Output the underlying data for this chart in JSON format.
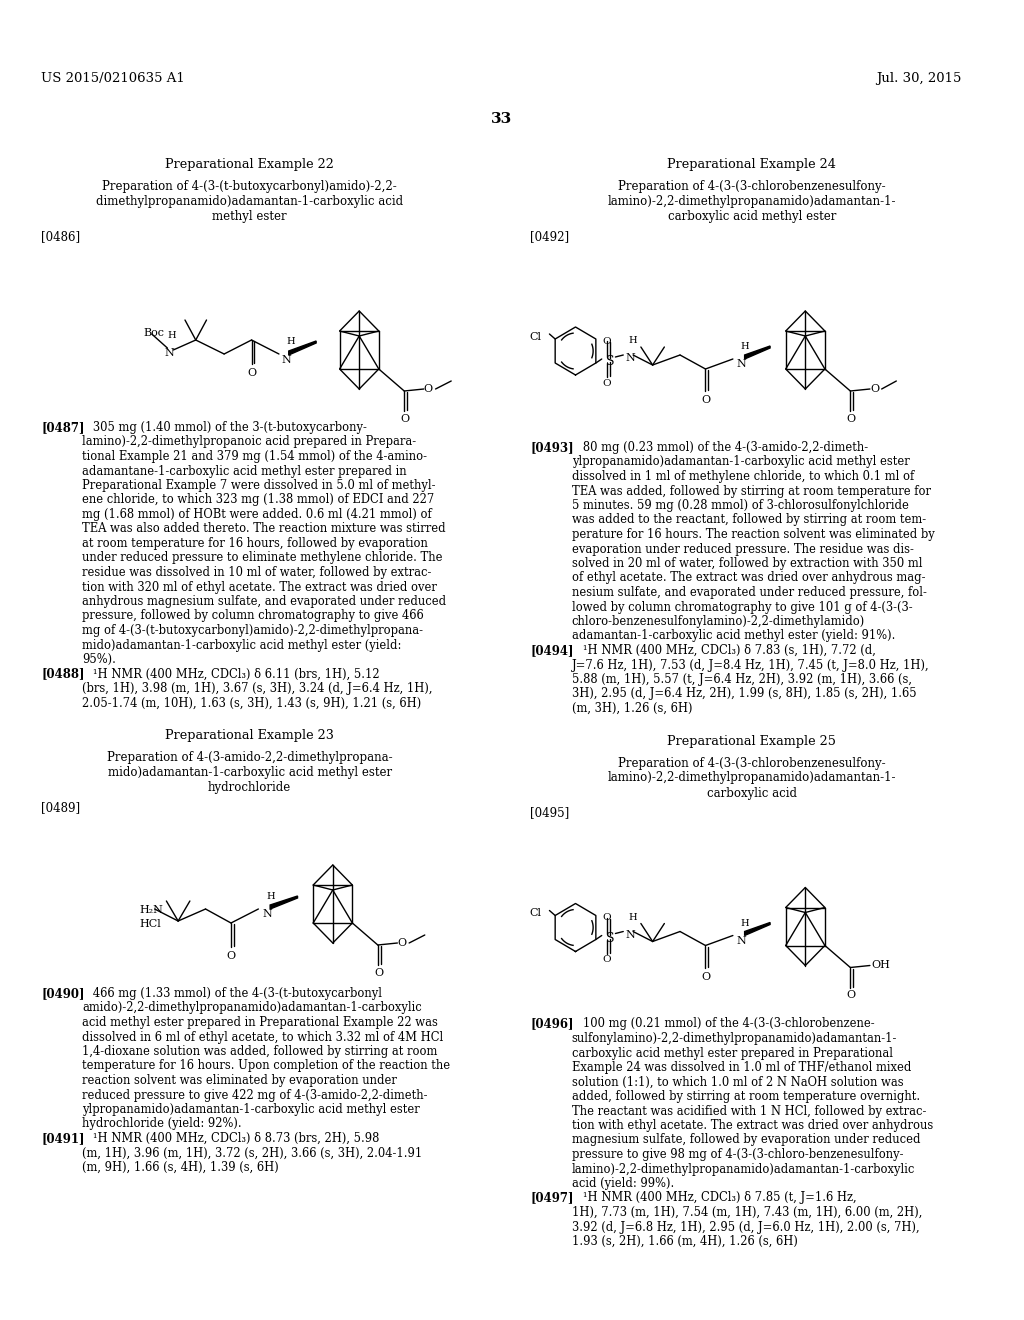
{
  "header_left": "US 2015/0210635 A1",
  "header_right": "Jul. 30, 2015",
  "page_number": "33",
  "bg_color": "#ffffff",
  "sections": {
    "ex22_title": "Preparational Example 22",
    "ex22_sub1": "Preparation of 4-(3-(t-butoxycarbonyl)amido)-2,2-",
    "ex22_sub2": "dimethylpropanamido)adamantan-1-carboxylic acid",
    "ex22_sub3": "methyl ester",
    "ex22_tag": "[0486]",
    "ex22_para_tag": "[0487]",
    "ex22_para": "   305 mg (1.40 mmol) of the 3-(t-butoxycarbony-\nlamino)-2,2-dimethylpropanoic acid prepared in Prepara-\ntional Example 21 and 379 mg (1.54 mmol) of the 4-amino-\nadamantane-1-carboxylic acid methyl ester prepared in\nPreparational Example 7 were dissolved in 5.0 ml of methyl-\nene chloride, to which 323 mg (1.38 mmol) of EDCI and 227\nmg (1.68 mmol) of HOBt were added. 0.6 ml (4.21 mmol) of\nTEA was also added thereto. The reaction mixture was stirred\nat room temperature for 16 hours, followed by evaporation\nunder reduced pressure to eliminate methylene chloride. The\nresidue was dissolved in 10 ml of water, followed by extrac-\ntion with 320 ml of ethyl acetate. The extract was dried over\nanhydrous magnesium sulfate, and evaporated under reduced\npressure, followed by column chromatography to give 466\nmg of 4-(3-(t-butoxycarbonyl)amido)-2,2-dimethylpropana-\nmido)adamantan-1-carboxylic acid methyl ester (yield:\n95%).",
    "ex22_nmr_tag": "[0488]",
    "ex22_nmr": "   ¹H NMR (400 MHz, CDCl₃) δ 6.11 (brs, 1H), 5.12\n(brs, 1H), 3.98 (m, 1H), 3.67 (s, 3H), 3.24 (d, J=6.4 Hz, 1H),\n2.05-1.74 (m, 10H), 1.63 (s, 3H), 1.43 (s, 9H), 1.21 (s, 6H)",
    "ex23_title": "Preparational Example 23",
    "ex23_sub1": "Preparation of 4-(3-amido-2,2-dimethylpropana-",
    "ex23_sub2": "mido)adamantan-1-carboxylic acid methyl ester",
    "ex23_sub3": "hydrochloride",
    "ex23_tag": "[0489]",
    "ex23_para_tag": "[0490]",
    "ex23_para": "   466 mg (1.33 mmol) of the 4-(3-(t-butoxycarbonyl\namido)-2,2-dimethylpropanamido)adamantan-1-carboxylic\nacid methyl ester prepared in Preparational Example 22 was\ndissolved in 6 ml of ethyl acetate, to which 3.32 ml of 4M HCl\n1,4-dioxane solution was added, followed by stirring at room\ntemperature for 16 hours. Upon completion of the reaction the\nreaction solvent was eliminated by evaporation under\nreduced pressure to give 422 mg of 4-(3-amido-2,2-dimeth-\nylpropanamido)adamantan-1-carboxylic acid methyl ester\nhydrochloride (yield: 92%).",
    "ex23_nmr_tag": "[0491]",
    "ex23_nmr": "   ¹H NMR (400 MHz, CDCl₃) δ 8.73 (brs, 2H), 5.98\n(m, 1H), 3.96 (m, 1H), 3.72 (s, 2H), 3.66 (s, 3H), 2.04-1.91\n(m, 9H), 1.66 (s, 4H), 1.39 (s, 6H)",
    "ex24_title": "Preparational Example 24",
    "ex24_sub1": "Preparation of 4-(3-(3-chlorobenzenesulfony-",
    "ex24_sub2": "lamino)-2,2-dimethylpropanamido)adamantan-1-",
    "ex24_sub3": "carboxylic acid methyl ester",
    "ex24_tag": "[0492]",
    "ex24_para_tag": "[0493]",
    "ex24_para": "   80 mg (0.23 mmol) of the 4-(3-amido-2,2-dimeth-\nylpropanamido)adamantan-1-carboxylic acid methyl ester\ndissolved in 1 ml of methylene chloride, to which 0.1 ml of\nTEA was added, followed by stirring at room temperature for\n5 minutes. 59 mg (0.28 mmol) of 3-chlorosulfonylchloride\nwas added to the reactant, followed by stirring at room tem-\nperature for 16 hours. The reaction solvent was eliminated by\nevaporation under reduced pressure. The residue was dis-\nsolved in 20 ml of water, followed by extraction with 350 ml\nof ethyl acetate. The extract was dried over anhydrous mag-\nnesium sulfate, and evaporated under reduced pressure, fol-\nlowed by column chromatography to give 101 g of 4-(3-(3-\nchloro-benzenesulfonylamino)-2,2-dimethylamido)\nadamantan-1-carboxylic acid methyl ester (yield: 91%).",
    "ex24_nmr_tag": "[0494]",
    "ex24_nmr": "   ¹H NMR (400 MHz, CDCl₃) δ 7.83 (s, 1H), 7.72 (d,\nJ=7.6 Hz, 1H), 7.53 (d, J=8.4 Hz, 1H), 7.45 (t, J=8.0 Hz, 1H),\n5.88 (m, 1H), 5.57 (t, J=6.4 Hz, 2H), 3.92 (m, 1H), 3.66 (s,\n3H), 2.95 (d, J=6.4 Hz, 2H), 1.99 (s, 8H), 1.85 (s, 2H), 1.65\n(m, 3H), 1.26 (s, 6H)",
    "ex25_title": "Preparational Example 25",
    "ex25_sub1": "Preparation of 4-(3-(3-chlorobenzenesulfony-",
    "ex25_sub2": "lamino)-2,2-dimethylpropanamido)adamantan-1-",
    "ex25_sub3": "carboxylic acid",
    "ex25_tag": "[0495]",
    "ex25_para_tag": "[0496]",
    "ex25_para": "   100 mg (0.21 mmol) of the 4-(3-(3-chlorobenzene-\nsulfonylamino)-2,2-dimethylpropanamido)adamantan-1-\ncarboxylic acid methyl ester prepared in Preparational\nExample 24 was dissolved in 1.0 ml of THF/ethanol mixed\nsolution (1:1), to which 1.0 ml of 2 N NaOH solution was\nadded, followed by stirring at room temperature overnight.\nThe reactant was acidified with 1 N HCl, followed by extrac-\ntion with ethyl acetate. The extract was dried over anhydrous\nmagnesium sulfate, followed by evaporation under reduced\npressure to give 98 mg of 4-(3-(3-chloro-benzenesulfony-\nlamino)-2,2-dimethylpropanamido)adamantan-1-carboxylic\nacid (yield: 99%).",
    "ex25_nmr_tag": "[0497]",
    "ex25_nmr": "   ¹H NMR (400 MHz, CDCl₃) δ 7.85 (t, J=1.6 Hz,\n1H), 7.73 (m, 1H), 7.54 (m, 1H), 7.43 (m, 1H), 6.00 (m, 2H),\n3.92 (d, J=6.8 Hz, 1H), 2.95 (d, J=6.0 Hz, 1H), 2.00 (s, 7H),\n1.93 (s, 2H), 1.66 (m, 4H), 1.26 (s, 6H)"
  }
}
